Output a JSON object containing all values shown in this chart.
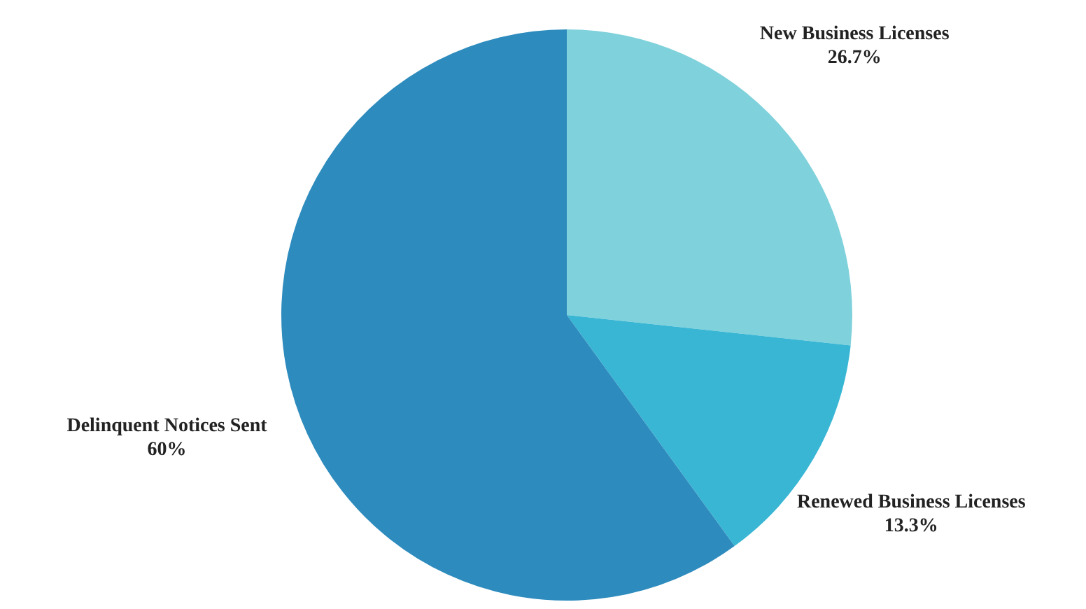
{
  "chart_data": {
    "type": "pie",
    "categories": [
      "New Business Licenses",
      "Renewed Business Licenses",
      "Delinquent Notices Sent"
    ],
    "values": [
      26.7,
      13.3,
      60
    ],
    "colors": [
      "#7fd1db",
      "#38b6d4",
      "#2d8bbd"
    ],
    "value_labels": [
      "26.7%",
      "13.3%",
      "60%"
    ],
    "legend": false
  }
}
